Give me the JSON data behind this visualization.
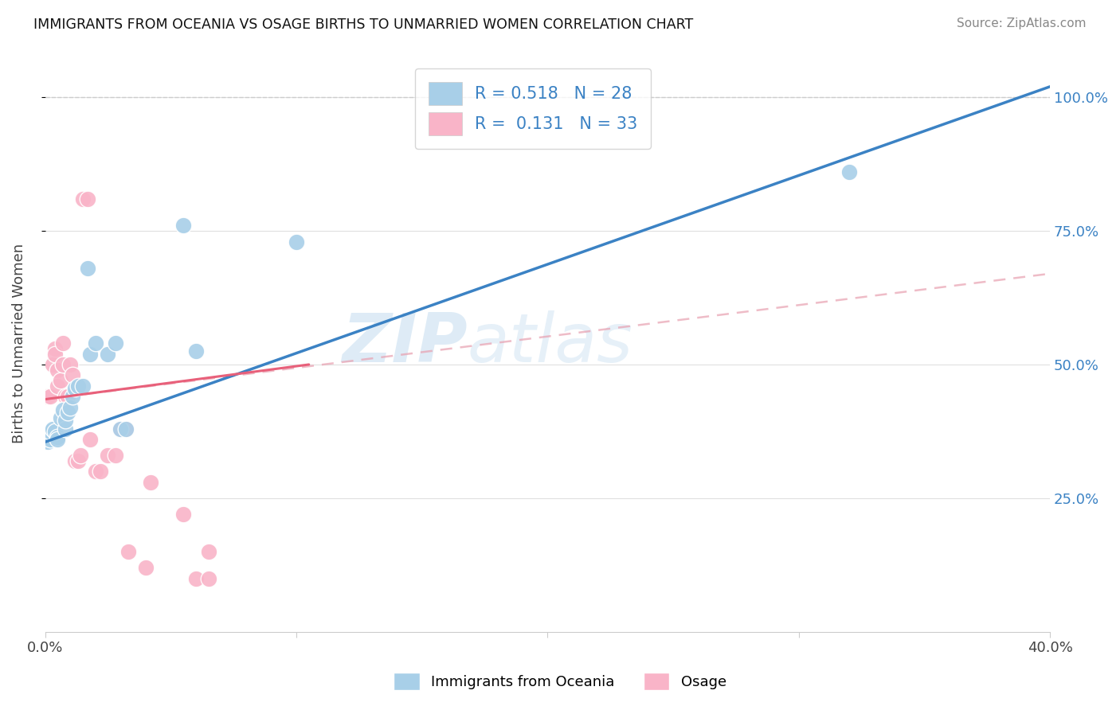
{
  "title": "IMMIGRANTS FROM OCEANIA VS OSAGE BIRTHS TO UNMARRIED WOMEN CORRELATION CHART",
  "source": "Source: ZipAtlas.com",
  "ylabel": "Births to Unmarried Women",
  "xlim": [
    0.0,
    0.4
  ],
  "ylim": [
    0.0,
    1.08
  ],
  "xtick_positions": [
    0.0,
    0.1,
    0.2,
    0.3,
    0.4
  ],
  "xtick_labels": [
    "0.0%",
    "",
    "",
    "",
    "40.0%"
  ],
  "ytick_positions": [
    0.25,
    0.5,
    0.75,
    1.0
  ],
  "ytick_labels_right": [
    "25.0%",
    "50.0%",
    "75.0%",
    "100.0%"
  ],
  "legend_label1": "Immigrants from Oceania",
  "legend_label2": "Osage",
  "R1": 0.518,
  "N1": 28,
  "R2": 0.131,
  "N2": 33,
  "color_blue": "#a8cfe8",
  "color_pink": "#f9b4c8",
  "color_blue_line": "#3b82c4",
  "color_pink_line": "#e8607a",
  "color_pink_dashed": "#e8a0b0",
  "watermark_zip": "ZIP",
  "watermark_atlas": "atlas",
  "blue_scatter_x": [
    0.001,
    0.002,
    0.002,
    0.003,
    0.004,
    0.005,
    0.005,
    0.006,
    0.007,
    0.008,
    0.008,
    0.009,
    0.01,
    0.011,
    0.012,
    0.013,
    0.015,
    0.017,
    0.018,
    0.02,
    0.025,
    0.028,
    0.03,
    0.032,
    0.055,
    0.06,
    0.1,
    0.32
  ],
  "blue_scatter_y": [
    0.355,
    0.36,
    0.375,
    0.38,
    0.375,
    0.365,
    0.36,
    0.4,
    0.415,
    0.38,
    0.395,
    0.41,
    0.42,
    0.44,
    0.455,
    0.46,
    0.46,
    0.68,
    0.52,
    0.54,
    0.52,
    0.54,
    0.38,
    0.38,
    0.76,
    0.525,
    0.73,
    0.86
  ],
  "pink_scatter_x": [
    0.001,
    0.002,
    0.003,
    0.004,
    0.004,
    0.005,
    0.005,
    0.006,
    0.007,
    0.007,
    0.008,
    0.009,
    0.01,
    0.011,
    0.012,
    0.013,
    0.014,
    0.015,
    0.017,
    0.018,
    0.02,
    0.022,
    0.025,
    0.028,
    0.03,
    0.032,
    0.033,
    0.04,
    0.042,
    0.055,
    0.06,
    0.065,
    0.065
  ],
  "pink_scatter_y": [
    0.44,
    0.44,
    0.5,
    0.53,
    0.52,
    0.49,
    0.46,
    0.47,
    0.5,
    0.54,
    0.44,
    0.44,
    0.5,
    0.48,
    0.32,
    0.32,
    0.33,
    0.81,
    0.81,
    0.36,
    0.3,
    0.3,
    0.33,
    0.33,
    0.38,
    0.38,
    0.15,
    0.12,
    0.28,
    0.22,
    0.1,
    0.15,
    0.1
  ],
  "blue_line_x": [
    0.0,
    0.4
  ],
  "blue_line_y": [
    0.355,
    1.02
  ],
  "pink_solid_line_x": [
    0.0,
    0.105
  ],
  "pink_solid_line_y": [
    0.435,
    0.5
  ],
  "pink_dashed_line_x": [
    0.0,
    0.4
  ],
  "pink_dashed_line_y": [
    0.435,
    0.67
  ],
  "grid_color": "#e0e0e0",
  "background_color": "#ffffff"
}
